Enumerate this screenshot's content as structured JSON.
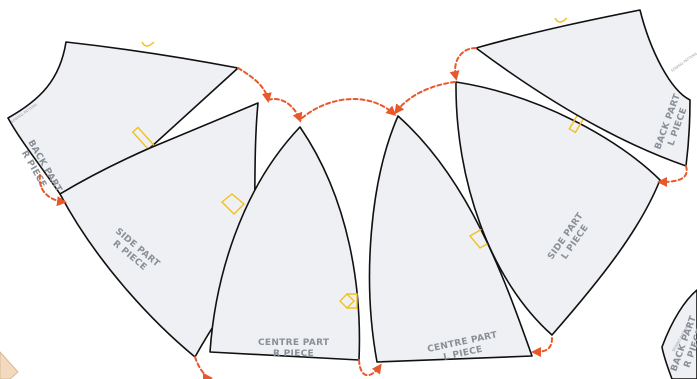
{
  "pieces": {
    "back_part_r": {
      "line1": "BACK PART",
      "line2": "R PIECE"
    },
    "side_part_r": {
      "line1": "SIDE PART",
      "line2": "R PIECE"
    },
    "centre_part_r": {
      "line1": "CENTRE PART",
      "line2": "R PIECE"
    },
    "centre_part_l": {
      "line1": "CENTRE PART",
      "line2": "L PIECE"
    },
    "side_part_l": {
      "line1": "SIDE PART",
      "line2": "L PIECE"
    },
    "back_part_l": {
      "line1": "BACK PART",
      "line2": "L PIECE"
    },
    "back_part_r_extra": {
      "line1": "BACK PART",
      "line2": "R PIECE"
    }
  },
  "colors": {
    "piece_fill": "#eef0f4",
    "outline": "#111111",
    "arrow": "#e9582a",
    "notch": "#f2c11c",
    "label": "#8a9097"
  }
}
